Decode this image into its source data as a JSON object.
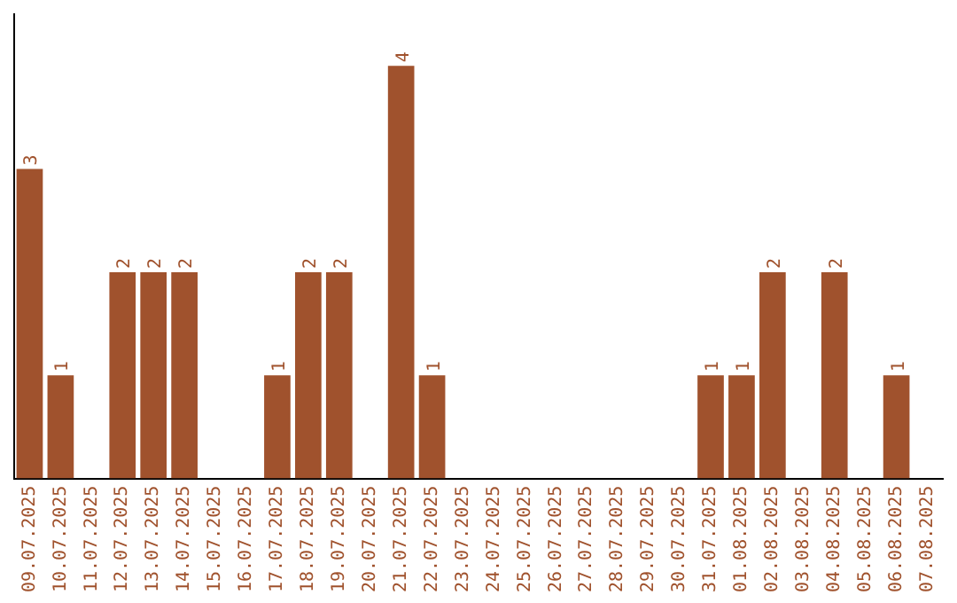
{
  "chart_data": {
    "type": "bar",
    "categories": [
      "09.07.2025",
      "10.07.2025",
      "11.07.2025",
      "12.07.2025",
      "13.07.2025",
      "14.07.2025",
      "15.07.2025",
      "16.07.2025",
      "17.07.2025",
      "18.07.2025",
      "19.07.2025",
      "20.07.2025",
      "21.07.2025",
      "22.07.2025",
      "23.07.2025",
      "24.07.2025",
      "25.07.2025",
      "26.07.2025",
      "27.07.2025",
      "28.07.2025",
      "29.07.2025",
      "30.07.2025",
      "31.07.2025",
      "01.08.2025",
      "02.08.2025",
      "03.08.2025",
      "04.08.2025",
      "05.08.2025",
      "06.08.2025",
      "07.08.2025"
    ],
    "values": [
      3,
      1,
      0,
      2,
      2,
      2,
      0,
      0,
      1,
      2,
      2,
      0,
      4,
      1,
      0,
      0,
      0,
      0,
      0,
      0,
      0,
      0,
      1,
      1,
      2,
      0,
      2,
      0,
      1,
      0
    ],
    "value_labels": [
      "3",
      "1",
      null,
      "2",
      "2",
      "2",
      null,
      null,
      "1",
      "2",
      "2",
      null,
      "4",
      "1",
      null,
      null,
      null,
      null,
      null,
      null,
      null,
      null,
      "1",
      "1",
      "2",
      null,
      "2",
      null,
      "1",
      null
    ],
    "color": "#a0522d",
    "grid": false,
    "legend": false,
    "tick_labels": "x"
  }
}
